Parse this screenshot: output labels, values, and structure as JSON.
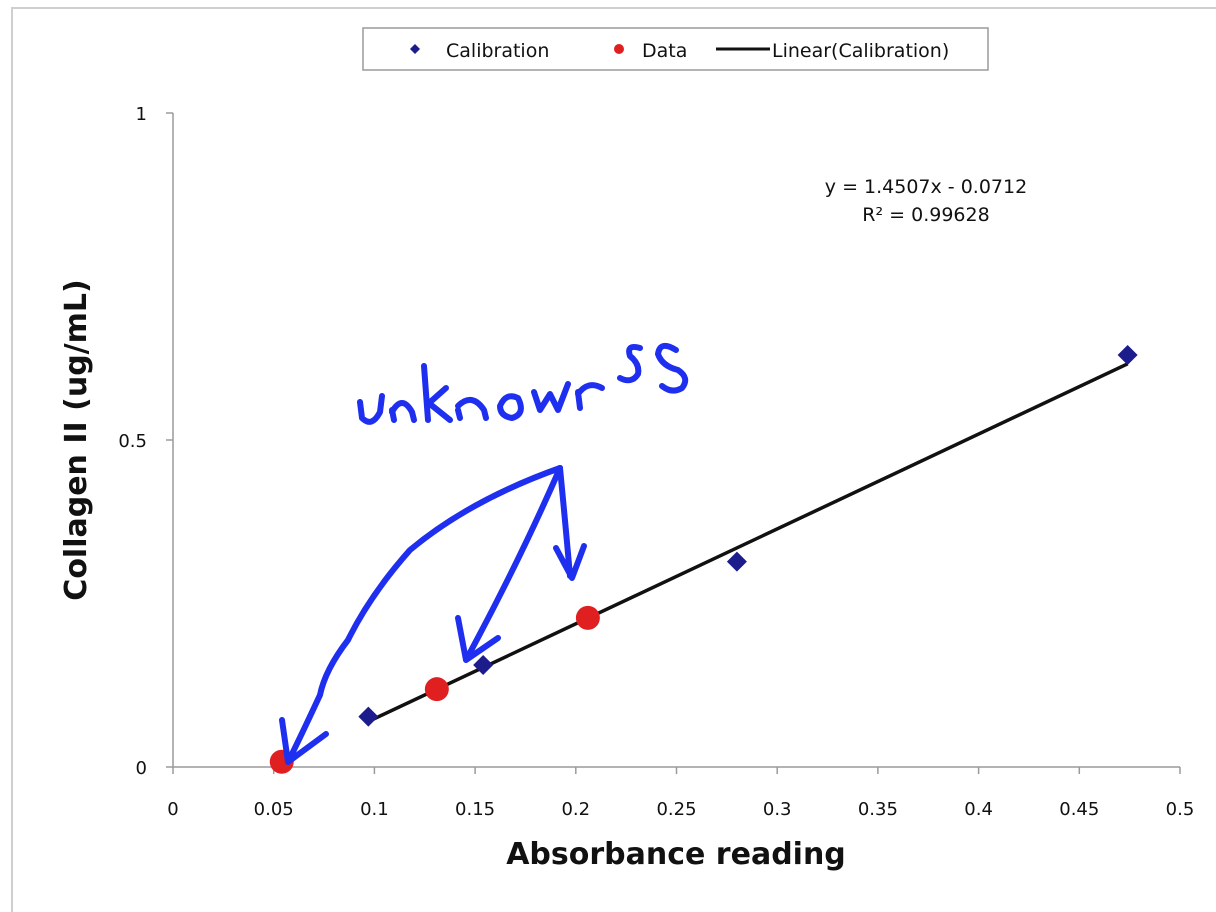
{
  "chart_data": {
    "type": "scatter",
    "title": "",
    "xlabel": "Absorbance reading",
    "ylabel": "Collagen II (ug/mL)",
    "xlim": [
      0,
      0.5
    ],
    "ylim": [
      0,
      1
    ],
    "x_ticks": [
      "0",
      "0.05",
      "0.1",
      "0.15",
      "0.2",
      "0.25",
      "0.3",
      "0.35",
      "0.4",
      "0.45",
      "0.5"
    ],
    "y_ticks": [
      "0",
      "0.5",
      "1"
    ],
    "grid": false,
    "legend_position": "top-center",
    "series": [
      {
        "name": "Calibration",
        "marker": "diamond",
        "color": "#1c1c8c",
        "points": [
          {
            "x": 0.097,
            "y": 0.077
          },
          {
            "x": 0.154,
            "y": 0.156
          },
          {
            "x": 0.28,
            "y": 0.314
          },
          {
            "x": 0.474,
            "y": 0.63
          }
        ]
      },
      {
        "name": "Data",
        "marker": "circle",
        "color": "#e02020",
        "points": [
          {
            "x": 0.054,
            "y": 0.008
          },
          {
            "x": 0.131,
            "y": 0.119
          },
          {
            "x": 0.206,
            "y": 0.228
          }
        ]
      },
      {
        "name": "Linear(Calibration)",
        "type": "line",
        "color": "#111111",
        "slope": 1.4507,
        "intercept": -0.0712,
        "x_range": [
          0.097,
          0.474
        ]
      }
    ],
    "annotations": {
      "equation": "y = 1.4507x - 0.0712",
      "r_squared": "R² = 0.99628",
      "handwritten": "unknowns",
      "handwritten_color": "#1f2ff0"
    }
  }
}
